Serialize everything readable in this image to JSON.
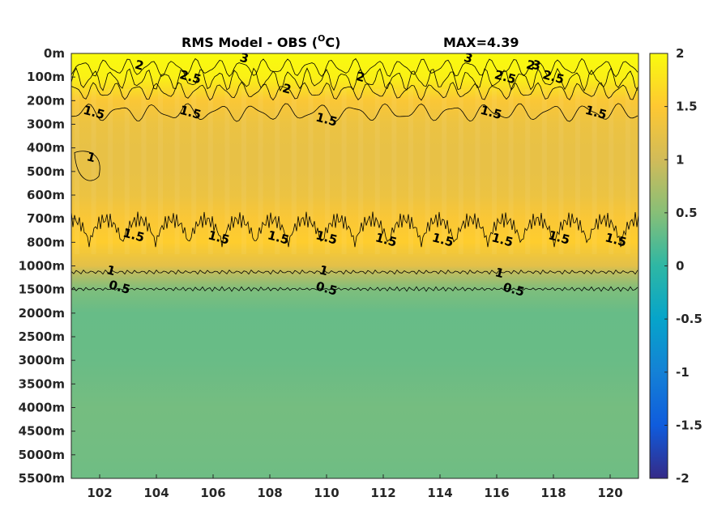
{
  "chart_data": {
    "type": "heatmap",
    "title": "RMS Model - OBS (°C)",
    "title_base": "RMS Model - OBS (",
    "title_sup": "O",
    "title_end": "C)",
    "max_label": "MAX=4.39",
    "colormap": "parula",
    "xlim": [
      101,
      121
    ],
    "x_ticks": [
      102,
      104,
      106,
      108,
      110,
      112,
      114,
      116,
      118,
      120
    ],
    "x_tick_labels": [
      "102",
      "104",
      "106",
      "108",
      "110",
      "112",
      "114",
      "116",
      "118",
      "120"
    ],
    "y_ticks": [
      "0m",
      "100m",
      "200m",
      "300m",
      "400m",
      "500m",
      "600m",
      "700m",
      "800m",
      "1000m",
      "1500m",
      "2000m",
      "2500m",
      "3000m",
      "3500m",
      "4000m",
      "4500m",
      "5000m",
      "5500m"
    ],
    "y_levels": [
      0,
      100,
      200,
      300,
      400,
      500,
      600,
      700,
      800,
      1000,
      1500,
      2000,
      2500,
      3000,
      3500,
      4000,
      4500,
      5000,
      5500
    ],
    "color_limits": [
      -2,
      2
    ],
    "colorbar_ticks": [
      2,
      1.5,
      1,
      0.5,
      0,
      -0.5,
      -1,
      -1.5,
      -2
    ],
    "colorbar_tick_labels": [
      "2",
      "1.5",
      "1",
      "0.5",
      "0",
      "-0.5",
      "-1",
      "-1.5",
      "-2"
    ],
    "depth_profile": [
      {
        "depth": 0,
        "value": 2.4
      },
      {
        "depth": 100,
        "value": 1.9
      },
      {
        "depth": 200,
        "value": 1.45
      },
      {
        "depth": 300,
        "value": 1.3
      },
      {
        "depth": 400,
        "value": 1.25
      },
      {
        "depth": 500,
        "value": 1.25
      },
      {
        "depth": 600,
        "value": 1.3
      },
      {
        "depth": 700,
        "value": 1.45
      },
      {
        "depth": 800,
        "value": 1.55
      },
      {
        "depth": 1000,
        "value": 1.2
      },
      {
        "depth": 1200,
        "value": 0.8
      },
      {
        "depth": 1500,
        "value": 0.45
      },
      {
        "depth": 2000,
        "value": 0.32
      },
      {
        "depth": 3000,
        "value": 0.33
      },
      {
        "depth": 4000,
        "value": 0.4
      },
      {
        "depth": 5000,
        "value": 0.38
      },
      {
        "depth": 5500,
        "value": 0.36
      }
    ],
    "contour_labels": [
      {
        "text": "2.5",
        "x": 105.2,
        "depth": 100
      },
      {
        "text": "2",
        "x": 103.4,
        "depth": 50
      },
      {
        "text": "2",
        "x": 108.6,
        "depth": 150
      },
      {
        "text": "2",
        "x": 111.2,
        "depth": 100
      },
      {
        "text": "2",
        "x": 117.2,
        "depth": 50
      },
      {
        "text": "3",
        "x": 107.1,
        "depth": 20
      },
      {
        "text": "3",
        "x": 115.0,
        "depth": 20
      },
      {
        "text": "3",
        "x": 117.4,
        "depth": 50
      },
      {
        "text": "2.5",
        "x": 118.0,
        "depth": 100
      },
      {
        "text": "2.5",
        "x": 116.3,
        "depth": 100
      },
      {
        "text": "1.5",
        "x": 101.8,
        "depth": 250
      },
      {
        "text": "1.5",
        "x": 105.2,
        "depth": 250
      },
      {
        "text": "1.5",
        "x": 110.0,
        "depth": 280
      },
      {
        "text": "1.5",
        "x": 115.8,
        "depth": 250
      },
      {
        "text": "1.5",
        "x": 119.5,
        "depth": 250
      },
      {
        "text": "1",
        "x": 101.7,
        "depth": 440
      },
      {
        "text": "1.5",
        "x": 103.2,
        "depth": 770
      },
      {
        "text": "1.5",
        "x": 106.2,
        "depth": 780
      },
      {
        "text": "1.5",
        "x": 108.3,
        "depth": 780
      },
      {
        "text": "1.5",
        "x": 110.0,
        "depth": 780
      },
      {
        "text": "1.5",
        "x": 112.1,
        "depth": 790
      },
      {
        "text": "1.5",
        "x": 114.1,
        "depth": 790
      },
      {
        "text": "1.5",
        "x": 116.2,
        "depth": 790
      },
      {
        "text": "1.5",
        "x": 118.2,
        "depth": 780
      },
      {
        "text": "1.5",
        "x": 120.2,
        "depth": 790
      },
      {
        "text": "1",
        "x": 102.4,
        "depth": 1100
      },
      {
        "text": "1",
        "x": 109.9,
        "depth": 1100
      },
      {
        "text": "1",
        "x": 116.1,
        "depth": 1150
      },
      {
        "text": "0.5",
        "x": 102.7,
        "depth": 1450
      },
      {
        "text": "0.5",
        "x": 110.0,
        "depth": 1480
      },
      {
        "text": "0.5",
        "x": 116.6,
        "depth": 1500
      }
    ]
  }
}
